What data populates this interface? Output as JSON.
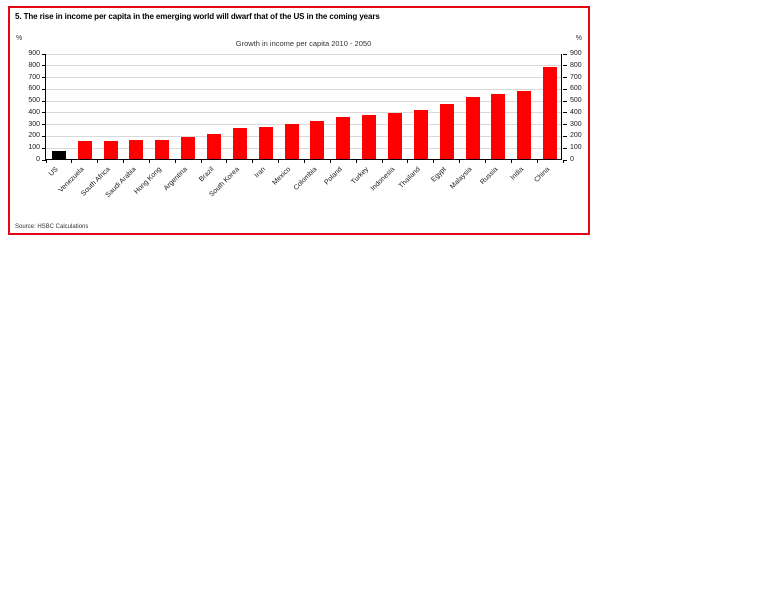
{
  "chart": {
    "title": "5. The rise in income per capita in the emerging world will dwarf that of the US in the coming years",
    "subtitle": "Growth in income per capita 2010 - 2050",
    "left_axis_unit": "%",
    "right_axis_unit": "%",
    "source": "Source: HSBC Calculations",
    "colors": {
      "border": "#e30613",
      "bar": "#ff0000",
      "us_bar": "#000000",
      "gridline": "#d9d9d9",
      "axis": "#000000"
    }
  },
  "chart_data": {
    "type": "bar",
    "title": "Growth in income per capita 2010 - 2050",
    "categories": [
      "US",
      "Venezuela",
      "South Africa",
      "Saudi Arabia",
      "Hong Kong",
      "Argentina",
      "Brazil",
      "South Korea",
      "Iran",
      "Mexico",
      "Colombia",
      "Poland",
      "Turkey",
      "Indonesia",
      "Thailand",
      "Egypt",
      "Malaysia",
      "Russia",
      "India",
      "China"
    ],
    "values": [
      65,
      155,
      157,
      160,
      165,
      190,
      215,
      260,
      275,
      295,
      320,
      355,
      375,
      390,
      415,
      465,
      530,
      555,
      580,
      785
    ],
    "bar_colors": [
      "#000000",
      "#ff0000",
      "#ff0000",
      "#ff0000",
      "#ff0000",
      "#ff0000",
      "#ff0000",
      "#ff0000",
      "#ff0000",
      "#ff0000",
      "#ff0000",
      "#ff0000",
      "#ff0000",
      "#ff0000",
      "#ff0000",
      "#ff0000",
      "#ff0000",
      "#ff0000",
      "#ff0000",
      "#ff0000"
    ],
    "xlabel": "",
    "ylabel": "%",
    "ylabel_right": "%",
    "ylim": [
      0,
      900
    ],
    "yticks": [
      0,
      100,
      200,
      300,
      400,
      500,
      600,
      700,
      800,
      900
    ],
    "grid": true,
    "legend": null,
    "dual_y_axis": true,
    "x_tick_label_rotation_deg": 45
  }
}
